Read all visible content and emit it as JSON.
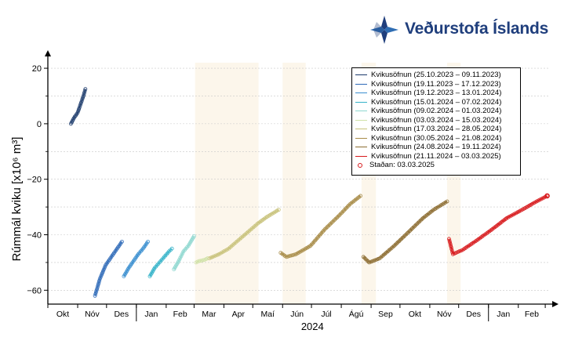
{
  "brand": {
    "name": "Veðurstofa Íslands",
    "color": "#1f3e7c"
  },
  "chart_data": {
    "type": "scatter",
    "title": "",
    "ylabel": "Rúmmál kviku [x10⁶ m³]",
    "year_label": "2024",
    "ylim": [
      -65,
      22
    ],
    "yticks": [
      20,
      0,
      -20,
      -40,
      -60
    ],
    "ytick_labels": [
      "20",
      "0",
      "−20",
      "−40",
      "−60"
    ],
    "xlim": [
      "2023-10-01",
      "2025-03-05"
    ],
    "month_labels": [
      "Okt",
      "Nóv",
      "Des",
      "Jan",
      "Feb",
      "Mar",
      "Apr",
      "Maí",
      "Jún",
      "Júl",
      "Ágú",
      "Sep",
      "Okt",
      "Nóv",
      "Des",
      "Jan",
      "Feb"
    ],
    "grid": true,
    "legend_position": "top-right",
    "shaded_periods": [
      [
        "2024-03-02",
        "2024-05-07"
      ],
      [
        "2024-06-01",
        "2024-06-25"
      ],
      [
        "2024-08-22",
        "2024-09-06"
      ],
      [
        "2024-11-19",
        "2024-12-03"
      ]
    ],
    "series": [
      {
        "name": "Kvikusöfnun (25.10.2023 – 09.11.2023)",
        "color": "#1b3a6b",
        "x": [
          "2023-10-25",
          "2023-10-28",
          "2023-11-01",
          "2023-11-04",
          "2023-11-07",
          "2023-11-09"
        ],
        "y": [
          0,
          2,
          4,
          7,
          10,
          12.5
        ]
      },
      {
        "name": "Kvikusöfnun (19.11.2023 – 17.12.2023)",
        "color": "#2e6ab8",
        "x": [
          "2023-11-19",
          "2023-11-24",
          "2023-11-30",
          "2023-12-06",
          "2023-12-12",
          "2023-12-17"
        ],
        "y": [
          -62,
          -56,
          -51,
          -48,
          -45,
          -42.5
        ]
      },
      {
        "name": "Kvikusöfnun (19.12.2023 – 13.01.2024)",
        "color": "#3a8fd0",
        "x": [
          "2023-12-19",
          "2023-12-24",
          "2023-12-29",
          "2024-01-03",
          "2024-01-08",
          "2024-01-13"
        ],
        "y": [
          -55,
          -52,
          -49.5,
          -47,
          -45,
          -42.5
        ]
      },
      {
        "name": "Kvikusöfnun (15.01.2024 – 07.02.2024)",
        "color": "#35b3c9",
        "x": [
          "2024-01-15",
          "2024-01-20",
          "2024-01-25",
          "2024-01-30",
          "2024-02-04",
          "2024-02-07"
        ],
        "y": [
          -55,
          -52,
          -50,
          -48,
          -46,
          -45
        ]
      },
      {
        "name": "Kvikusöfnun (09.02.2024 – 01.03.2024)",
        "color": "#8fd8d0",
        "x": [
          "2024-02-09",
          "2024-02-14",
          "2024-02-19",
          "2024-02-24",
          "2024-03-01"
        ],
        "y": [
          -52.5,
          -49.5,
          -46,
          -44,
          -40.5
        ]
      },
      {
        "name": "Kvikusöfnun (03.03.2024 – 15.03.2024)",
        "color": "#d0e2a8",
        "x": [
          "2024-03-03",
          "2024-03-06",
          "2024-03-09",
          "2024-03-12",
          "2024-03-15"
        ],
        "y": [
          -50,
          -49.5,
          -49.3,
          -49,
          -48.5
        ]
      },
      {
        "name": "Kvikusöfnun (17.03.2024 – 28.05.2024)",
        "color": "#c8c27a",
        "x": [
          "2024-03-17",
          "2024-03-27",
          "2024-04-06",
          "2024-04-16",
          "2024-04-26",
          "2024-05-06",
          "2024-05-16",
          "2024-05-28"
        ],
        "y": [
          -48.5,
          -47,
          -45,
          -42,
          -39,
          -36,
          -33.5,
          -31
        ]
      },
      {
        "name": "Kvikusöfnun (30.05.2024 – 21.08.2024)",
        "color": "#a88c48",
        "x": [
          "2024-05-30",
          "2024-06-05",
          "2024-06-15",
          "2024-06-30",
          "2024-07-15",
          "2024-07-30",
          "2024-08-10",
          "2024-08-21"
        ],
        "y": [
          -46.5,
          -48,
          -47,
          -44,
          -38,
          -33,
          -29,
          -26
        ]
      },
      {
        "name": "Kvikusöfnun (24.08.2024 – 19.11.2024)",
        "color": "#8c6c30",
        "x": [
          "2024-08-24",
          "2024-08-30",
          "2024-09-10",
          "2024-09-25",
          "2024-10-10",
          "2024-10-25",
          "2024-11-05",
          "2024-11-19"
        ],
        "y": [
          -48,
          -50,
          -48.5,
          -44,
          -39,
          -34,
          -31,
          -28
        ]
      },
      {
        "name": "Kvikusöfnun (21.11.2024 – 03.03.2025)",
        "color": "#d7191c",
        "x": [
          "2024-11-21",
          "2024-11-25",
          "2024-12-05",
          "2024-12-20",
          "2025-01-05",
          "2025-01-20",
          "2025-02-05",
          "2025-02-20",
          "2025-03-03"
        ],
        "y": [
          -41.5,
          -47,
          -45.5,
          -42,
          -38,
          -34,
          -31,
          -28,
          -26
        ]
      }
    ],
    "status": {
      "label": "Staðan: 03.03.2025",
      "x": "2025-03-03",
      "y": -26,
      "color": "#d7191c"
    }
  }
}
